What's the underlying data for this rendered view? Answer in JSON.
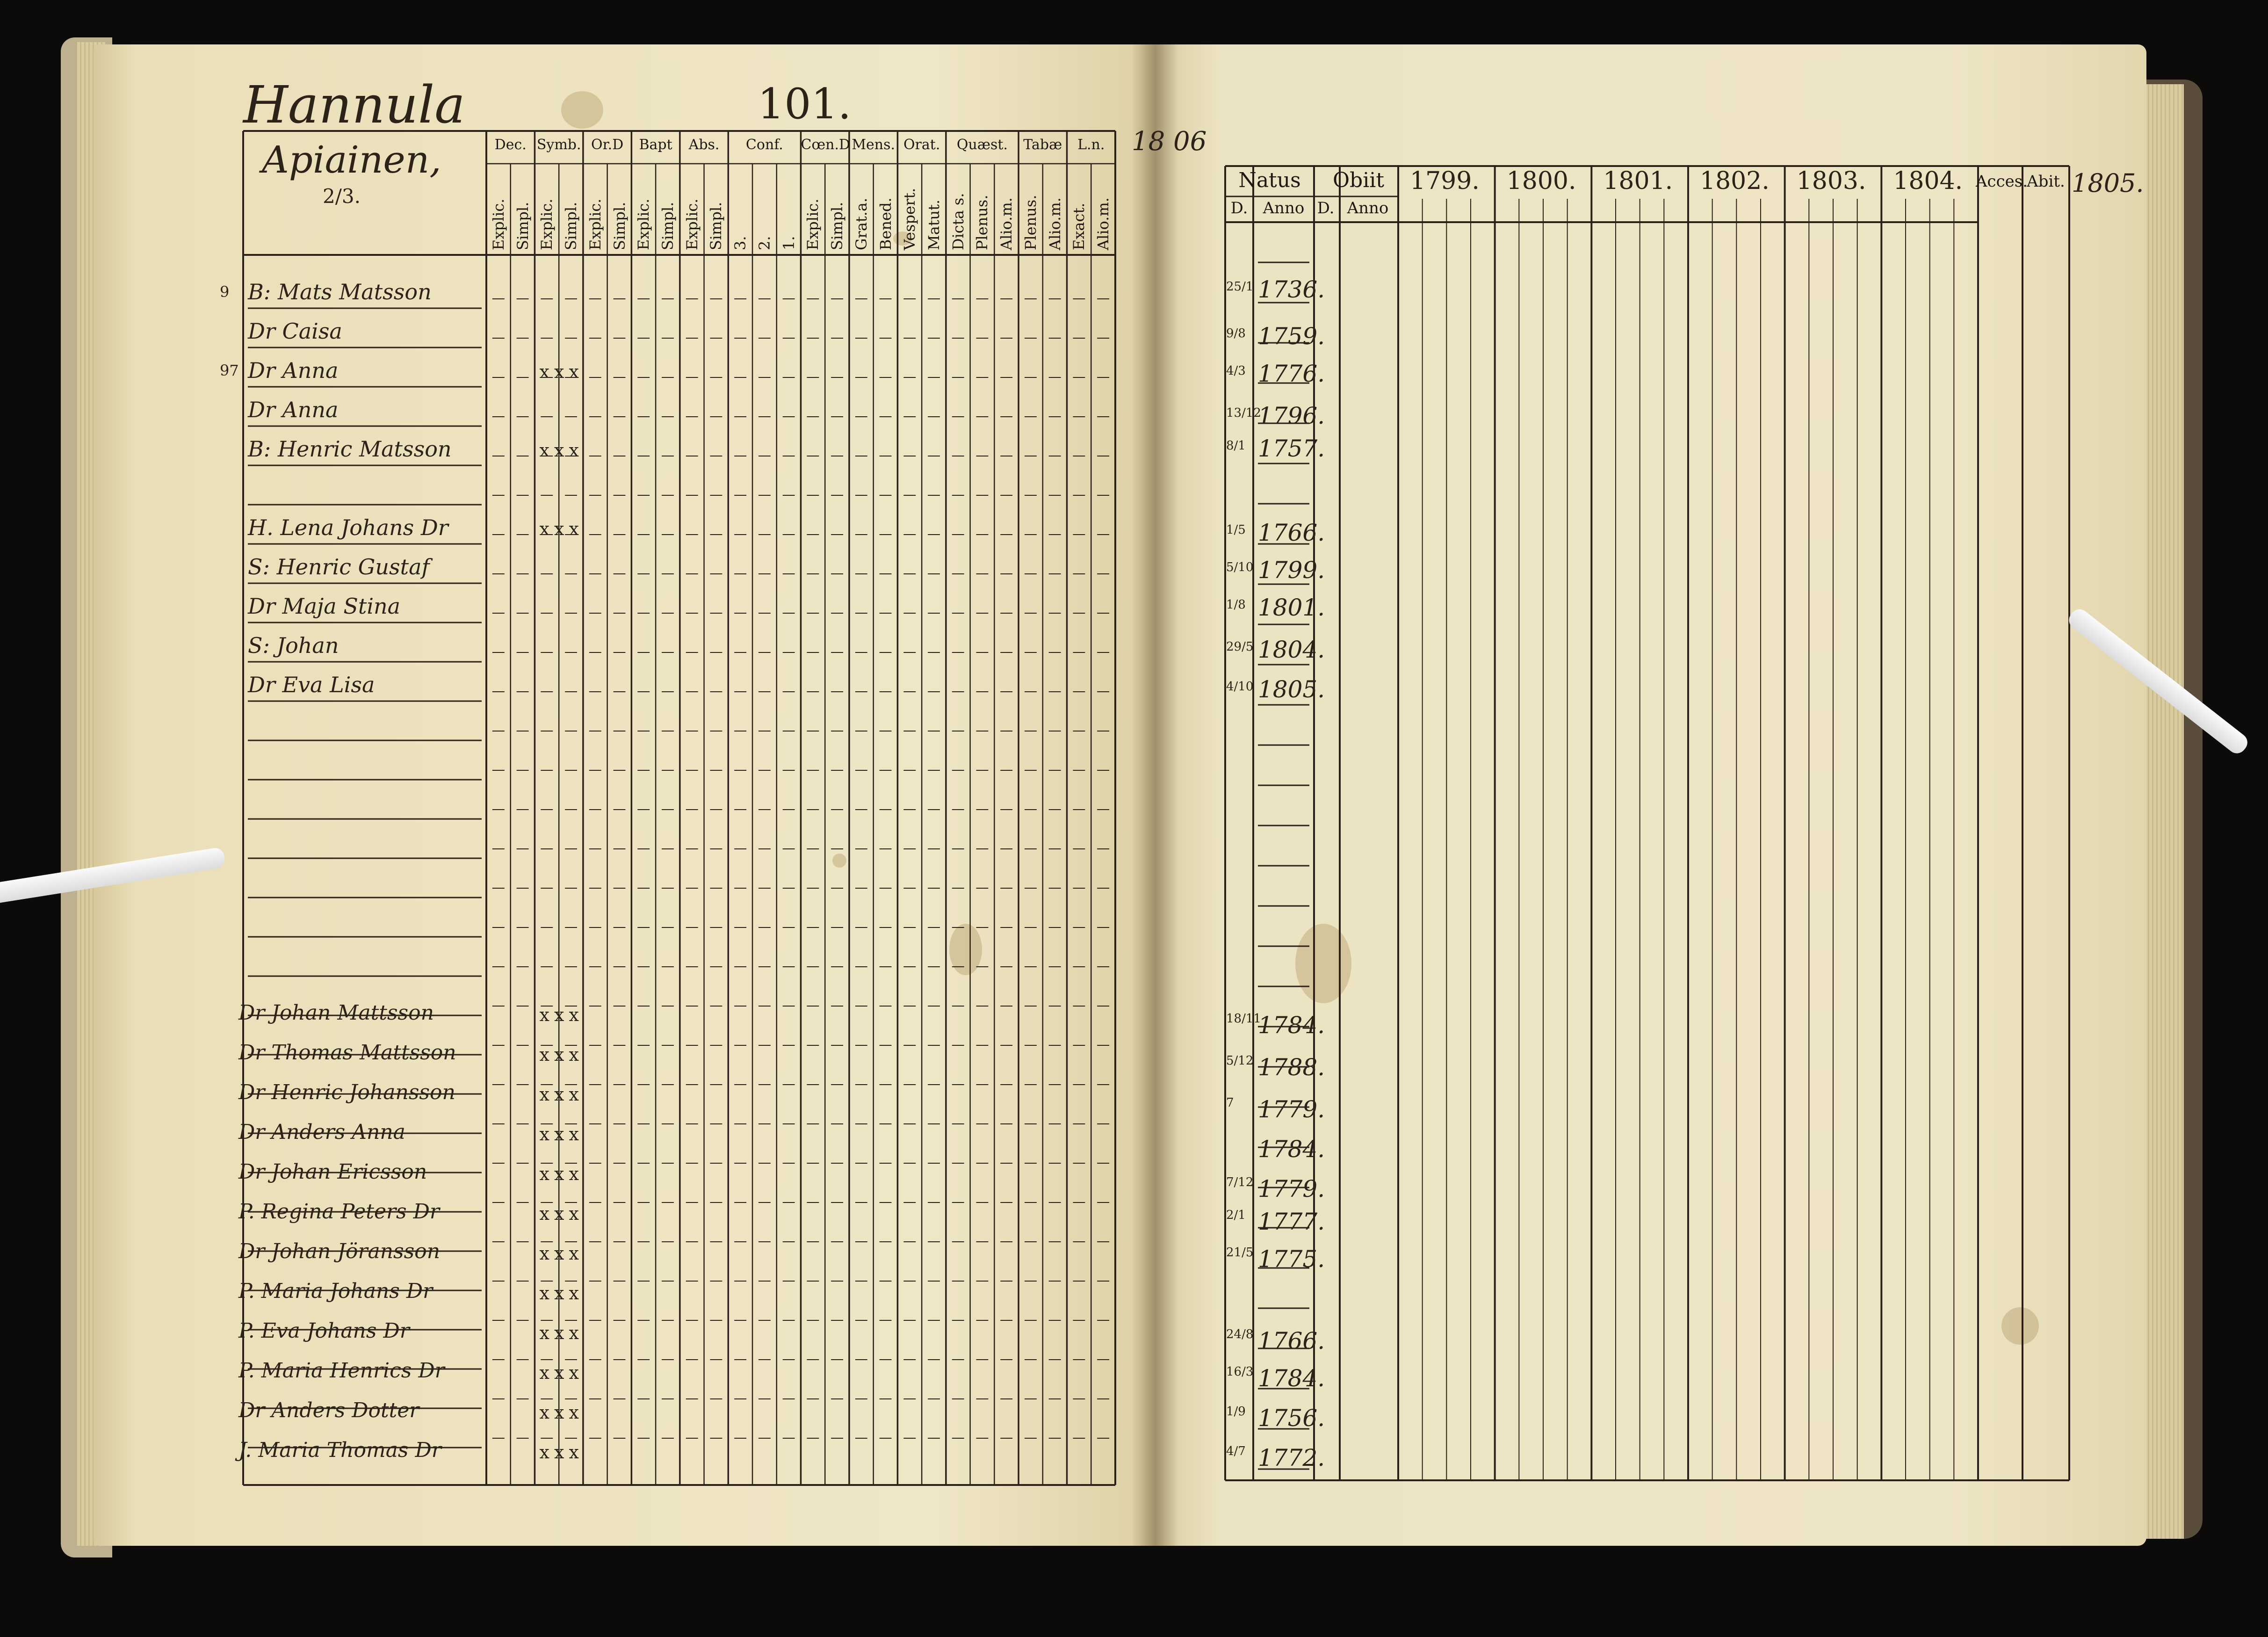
{
  "left_page": {
    "farm_name": "Hannula",
    "page_number": "101.",
    "subtitle": "Apiainen,",
    "fraction": "2/3.",
    "column_groups": [
      {
        "label": "Dec.",
        "subs": [
          "Explic.",
          "Simpl."
        ]
      },
      {
        "label": "Symb.",
        "subs": [
          "Explic.",
          "Simpl."
        ]
      },
      {
        "label": "Or.D",
        "subs": [
          "Explic.",
          "Simpl."
        ]
      },
      {
        "label": "Bapt",
        "subs": [
          "Explic.",
          "Simpl."
        ]
      },
      {
        "label": "Abs.",
        "subs": [
          "Explic.",
          "Simpl."
        ]
      },
      {
        "label": "Conf.",
        "subs": [
          "3.",
          "2.",
          "1."
        ]
      },
      {
        "label": "Cœn.D",
        "subs": [
          "Explic.",
          "Simpl."
        ]
      },
      {
        "label": "Mens.",
        "subs": [
          "Grat.a.",
          "Bened."
        ]
      },
      {
        "label": "Orat.",
        "subs": [
          "Vespert.",
          "Matut."
        ]
      },
      {
        "label": "Quæst.",
        "subs": [
          "Dicta s.",
          "Plenus.",
          "Alio.m."
        ]
      },
      {
        "label": "Tabæ",
        "subs": [
          "Plenus.",
          "Alio.m."
        ]
      },
      {
        "label": "L.n.",
        "subs": [
          "Exact.",
          "Alio.m."
        ]
      }
    ],
    "persons_upper": [
      {
        "prefix": "9",
        "name": "B: Mats Matsson",
        "marks": ""
      },
      {
        "prefix": "",
        "name": "Dr Caisa",
        "marks": ""
      },
      {
        "prefix": "97",
        "name": "Dr Anna",
        "marks": "x x x"
      },
      {
        "prefix": "",
        "name": "Dr Anna",
        "marks": ""
      },
      {
        "prefix": "",
        "name": "B: Henric Matsson",
        "marks": "x x x"
      },
      {
        "prefix": "",
        "name": "H. Lena Johans Dr",
        "marks": "x x x"
      },
      {
        "prefix": "",
        "name": "S: Henric Gustaf",
        "marks": ""
      },
      {
        "prefix": "",
        "name": "Dr Maja Stina",
        "marks": ""
      },
      {
        "prefix": "",
        "name": "S: Johan",
        "marks": ""
      },
      {
        "prefix": "",
        "name": "Dr Eva Lisa",
        "marks": ""
      }
    ],
    "persons_lower": [
      {
        "name": "Dr Johan Mattsson",
        "marks": "x x x"
      },
      {
        "name": "Dr Thomas Mattsson",
        "marks": "x x x"
      },
      {
        "name": "Dr Henric Johansson",
        "marks": "x x x"
      },
      {
        "name": "Dr Anders Anna",
        "marks": "x x x"
      },
      {
        "name": "Dr Johan Ericsson",
        "marks": "x x x"
      },
      {
        "name": "P. Regina Peters Dr",
        "marks": "x x x"
      },
      {
        "name": "Dr Johan Jöransson",
        "marks": "x x x"
      },
      {
        "name": "P. Maria Johans Dr",
        "marks": "x x x"
      },
      {
        "name": "P. Eva Johans Dr",
        "marks": "x x x"
      },
      {
        "name": "P. Maria Henrics Dr",
        "marks": "x x x"
      },
      {
        "name": "Dr Anders Dotter",
        "marks": "x x x"
      },
      {
        "name": "J. Maria Thomas Dr",
        "marks": "x x x"
      }
    ]
  },
  "right_page": {
    "top_note": "18   06",
    "headers": {
      "natus": "Natus",
      "obiit": "Obiit",
      "d": "D.",
      "anno": "Anno",
      "years": [
        "1799.",
        "1800.",
        "1801.",
        "1802.",
        "1803.",
        "1804."
      ],
      "acces": "Acces.",
      "abit": "Abit.",
      "margin_year": "1805."
    },
    "birth_upper": [
      {
        "d": "25/1",
        "anno": "1736."
      },
      {
        "d": "9/8",
        "anno": "1759."
      },
      {
        "d": "4/3",
        "anno": "1776."
      },
      {
        "d": "13/12",
        "anno": "1796."
      },
      {
        "d": "8/1",
        "anno": "1757."
      },
      {
        "d": "1/5",
        "anno": "1766."
      },
      {
        "d": "5/10",
        "anno": "1799."
      },
      {
        "d": "1/8",
        "anno": "1801."
      },
      {
        "d": "29/5",
        "anno": "1804."
      },
      {
        "d": "4/10",
        "anno": "1805."
      }
    ],
    "birth_lower": [
      {
        "d": "18/11",
        "anno": "1784."
      },
      {
        "d": "5/12",
        "anno": "1788."
      },
      {
        "d": "7",
        "anno": "1779."
      },
      {
        "d": "",
        "anno": "1784."
      },
      {
        "d": "7/12",
        "anno": "1779."
      },
      {
        "d": "2/1",
        "anno": "1777."
      },
      {
        "d": "21/5",
        "anno": "1775."
      },
      {
        "d": "",
        "anno": ""
      },
      {
        "d": "24/8",
        "anno": "1766."
      },
      {
        "d": "16/3",
        "anno": "1784."
      },
      {
        "d": "1/9",
        "anno": "1756."
      },
      {
        "d": "4/7",
        "anno": "1772."
      }
    ]
  }
}
